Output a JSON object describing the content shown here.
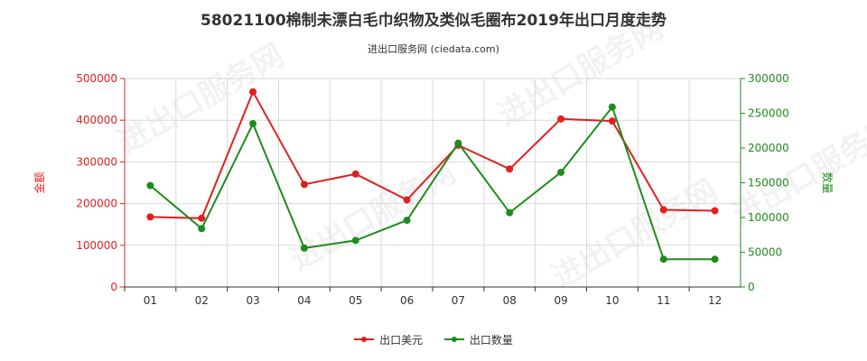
{
  "chart_data": {
    "type": "line",
    "title": "58021100棉制未漂白毛巾织物及类似毛圈布2019年出口月度走势",
    "subtitle": "进出口服务网 (ciedata.com)",
    "categories": [
      "01",
      "02",
      "03",
      "04",
      "05",
      "06",
      "07",
      "08",
      "09",
      "10",
      "11",
      "12"
    ],
    "ylabel_left": "金额",
    "ylabel_right": "数量",
    "ylim_left": [
      0,
      500000
    ],
    "ylim_right": [
      0,
      300000
    ],
    "yticks_left": [
      "0",
      "100000",
      "200000",
      "300000",
      "400000",
      "500000"
    ],
    "yticks_right": [
      "0",
      "50000",
      "100000",
      "150000",
      "200000",
      "250000",
      "300000"
    ],
    "grid": true,
    "legend_position": "bottom",
    "series": [
      {
        "name": "出口美元",
        "axis": "left",
        "color": "#e02020",
        "values": [
          168000,
          165000,
          468000,
          246000,
          271000,
          209000,
          340000,
          283000,
          403000,
          398000,
          185000,
          183000
        ]
      },
      {
        "name": "出口数量",
        "axis": "right",
        "color": "#1e8c1e",
        "values": [
          146000,
          84000,
          235000,
          56000,
          67000,
          96000,
          207000,
          107000,
          165000,
          259000,
          40000,
          40000
        ]
      }
    ]
  },
  "watermark": "进出口服务网"
}
